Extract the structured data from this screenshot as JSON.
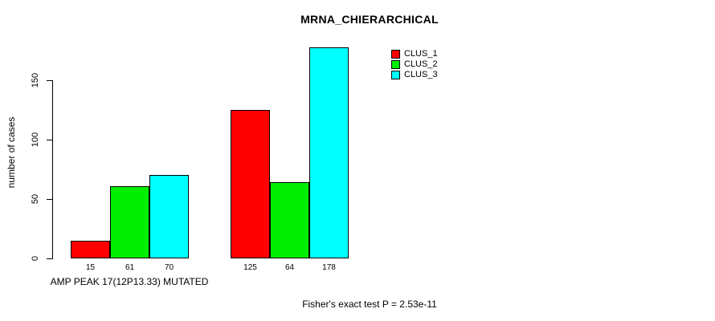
{
  "chart_data": {
    "type": "bar",
    "title": "MRNA_CHIERARCHICAL",
    "ylabel": "number of cases",
    "xlabel": "AMP PEAK 17(12P13.33) MUTATED",
    "footer": "Fisher's exact test P = 2.53e-11",
    "yticks": [
      0,
      50,
      100,
      150
    ],
    "ylim": [
      0,
      178
    ],
    "grid": false,
    "legend_position": "top-right",
    "categories": [
      "AMP PEAK 17(12P13.33) MUTATED",
      ""
    ],
    "series": [
      {
        "name": "CLUS_1",
        "color": "#ff0000",
        "values": [
          15,
          125
        ]
      },
      {
        "name": "CLUS_2",
        "color": "#00ee00",
        "values": [
          61,
          64
        ]
      },
      {
        "name": "CLUS_3",
        "color": "#00ffff",
        "values": [
          70,
          178
        ]
      }
    ]
  }
}
